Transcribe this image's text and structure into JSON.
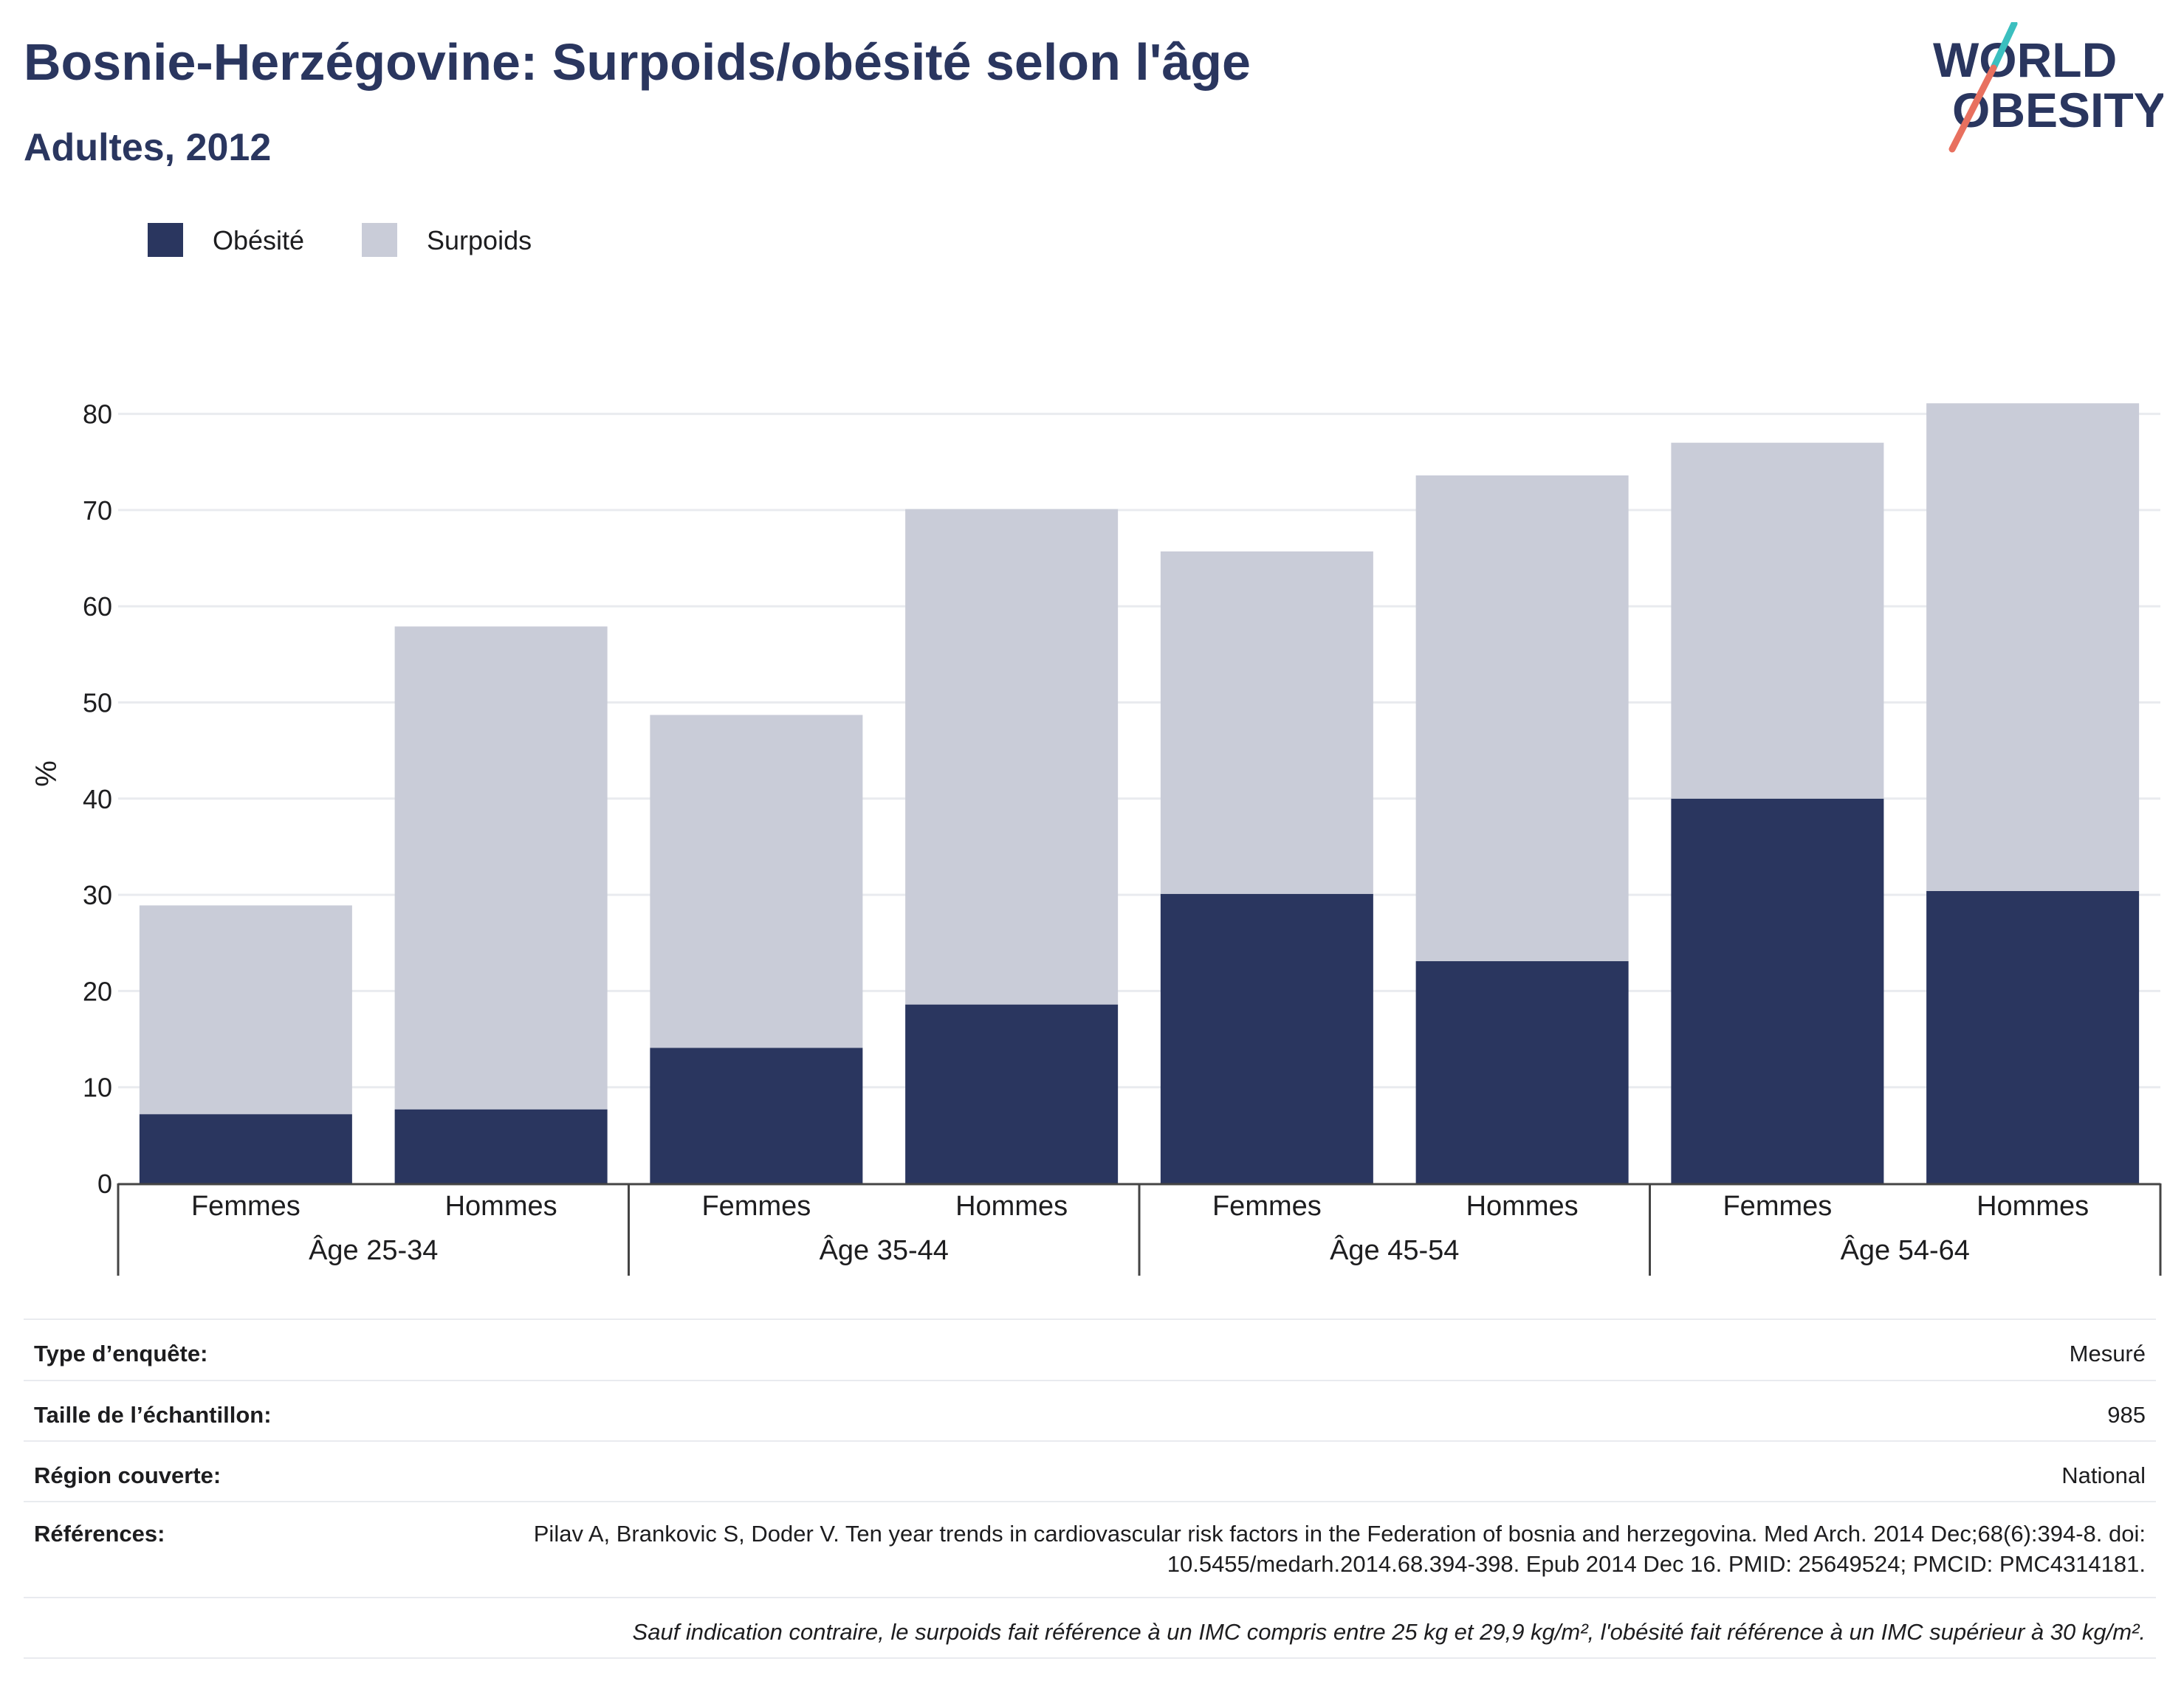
{
  "header": {
    "title": "Bosnie-Herzégovine: Surpoids/obésité selon l'âge",
    "subtitle": "Adultes, 2012"
  },
  "logo": {
    "line1": "WORLD",
    "line2": "OBESITY"
  },
  "colors": {
    "obesity": "#2a365f",
    "overweight": "#c9ccd8",
    "logo_teal": "#3bbfbf",
    "logo_coral": "#e8705f"
  },
  "chart_data": {
    "type": "bar",
    "stacked": true,
    "legend_position": "top-left",
    "grid": true,
    "ylabel": "%",
    "ylim": [
      0,
      82
    ],
    "yticks": [
      0,
      10,
      20,
      30,
      40,
      50,
      60,
      70,
      80
    ],
    "categories": [
      "Femmes",
      "Hommes",
      "Femmes",
      "Hommes",
      "Femmes",
      "Hommes",
      "Femmes",
      "Hommes"
    ],
    "groups": [
      "Âge 25-34",
      "Âge 35-44",
      "Âge 45-54",
      "Âge 54-64"
    ],
    "series": [
      {
        "name": "Obésité",
        "color": "#2a365f",
        "values": [
          7.2,
          7.7,
          14.1,
          18.6,
          30.1,
          23.1,
          40.0,
          30.4
        ]
      },
      {
        "name": "Surpoids",
        "color": "#c9ccd8",
        "values": [
          21.7,
          50.2,
          34.6,
          51.5,
          35.6,
          50.5,
          37.0,
          50.7
        ]
      }
    ]
  },
  "info": {
    "survey_type_label": "Type d’enquête:",
    "survey_type_value": "Mesuré",
    "sample_size_label": "Taille de l’échantillon:",
    "sample_size_value": "985",
    "region_label": "Région couverte:",
    "region_value": "National",
    "references_label": "Références:",
    "references_value": "Pilav A, Brankovic S, Doder V. Ten year trends in cardiovascular risk factors in the Federation of bosnia and herzegovina. Med Arch. 2014 Dec;68(6):394-8. doi: 10.5455/medarh.2014.68.394-398. Epub 2014 Dec 16. PMID: 25649524; PMCID: PMC4314181.",
    "footnote": "Sauf indication contraire, le surpoids fait référence à un IMC compris entre 25 kg et 29,9 kg/m², l'obésité fait référence à un IMC supérieur à 30 kg/m²."
  }
}
